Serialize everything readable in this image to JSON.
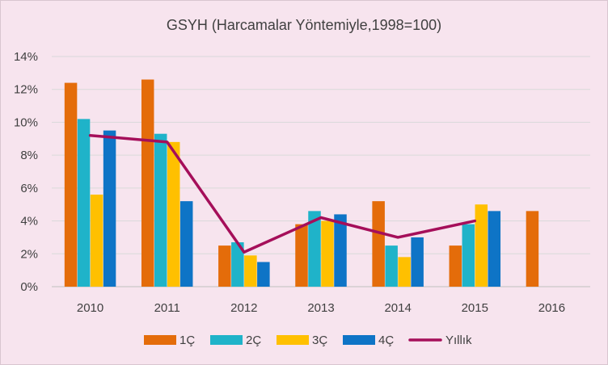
{
  "chart_data": {
    "type": "bar",
    "title": "GSYH (Harcamalar Yöntemiyle,1998=100)",
    "xlabel": "",
    "ylabel": "",
    "categories": [
      "2010",
      "2011",
      "2012",
      "2013",
      "2014",
      "2015",
      "2016"
    ],
    "ylim": [
      0,
      14
    ],
    "yticks": [
      "0%",
      "2%",
      "4%",
      "6%",
      "8%",
      "10%",
      "12%",
      "14%"
    ],
    "grid": true,
    "legend_position": "bottom",
    "series": [
      {
        "name": "1Ç",
        "kind": "bar",
        "color": "#e46c0a",
        "values": [
          12.4,
          12.6,
          2.5,
          3.8,
          5.2,
          2.5,
          4.6
        ]
      },
      {
        "name": "2Ç",
        "kind": "bar",
        "color": "#1fb3c9",
        "values": [
          10.2,
          9.3,
          2.7,
          4.6,
          2.5,
          3.8,
          null
        ]
      },
      {
        "name": "3Ç",
        "kind": "bar",
        "color": "#ffc000",
        "values": [
          5.6,
          8.8,
          1.9,
          4.0,
          1.8,
          5.0,
          null
        ]
      },
      {
        "name": "4Ç",
        "kind": "bar",
        "color": "#0e74c6",
        "values": [
          9.5,
          5.2,
          1.5,
          4.4,
          3.0,
          4.6,
          null
        ]
      },
      {
        "name": "Yıllık",
        "kind": "line",
        "color": "#a50f5a",
        "values": [
          9.2,
          8.8,
          2.1,
          4.2,
          3.0,
          4.0,
          null
        ]
      }
    ]
  }
}
